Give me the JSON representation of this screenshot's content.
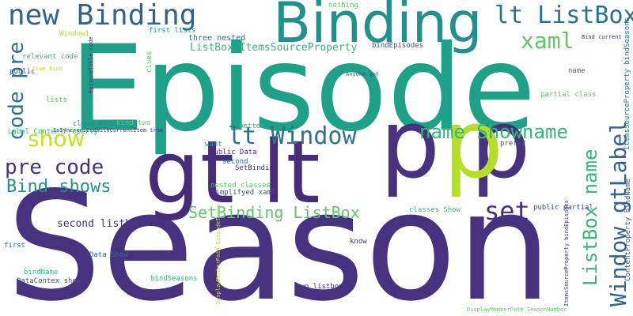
{
  "palette": {
    "dark_purple": "#472c7a",
    "purple": "#46327e",
    "indigo": "#3b528b",
    "blue": "#33638d",
    "steel_blue": "#2c728e",
    "teal": "#21918c",
    "green_teal": "#1fa187",
    "green": "#35b779",
    "light_green": "#5ec962",
    "yellow_green": "#b5de2b",
    "yellow": "#c8e020",
    "background": "#ffffff"
  },
  "words": [
    {
      "text": "Season",
      "color": "#46327e"
    },
    {
      "text": "Episode",
      "color": "#1fa187"
    },
    {
      "text": "Binding",
      "color": "#21918c"
    },
    {
      "text": "gt lt",
      "color": "#472c7a"
    },
    {
      "text": "p p",
      "color": "#46327e"
    },
    {
      "text": "p",
      "color": "#b5de2b"
    },
    {
      "text": "new Binding",
      "color": "#33638d"
    },
    {
      "text": "lt ListBox",
      "color": "#2c728e"
    },
    {
      "text": "xaml",
      "color": "#5ec962"
    },
    {
      "text": "code pre",
      "color": "#2c728e"
    },
    {
      "text": "lt Window",
      "color": "#2c728e"
    },
    {
      "text": "show",
      "color": "#c8e020"
    },
    {
      "text": "name Showname",
      "color": "#35b779"
    },
    {
      "text": "pre code",
      "color": "#46327e"
    },
    {
      "text": "Bind shows",
      "color": "#21918c"
    },
    {
      "text": "SetBinding ListBox",
      "color": "#5ec962"
    },
    {
      "text": "set",
      "color": "#46327e"
    },
    {
      "text": "Window gtLabel",
      "color": "#33638d"
    },
    {
      "text": "ListBox name",
      "color": "#35b779"
    },
    {
      "text": "ListBox ItemsSourceProperty",
      "color": "#35b779"
    },
    {
      "text": "second listbox",
      "color": "#46327e"
    },
    {
      "text": "nothing",
      "color": "#5ec962"
    },
    {
      "text": "Window1",
      "color": "#b5de2b"
    },
    {
      "text": "first lists",
      "color": "#21918c"
    },
    {
      "text": "three nested",
      "color": "#2c728e"
    },
    {
      "text": "Bind current",
      "color": "#46327e"
    },
    {
      "text": "relevant code",
      "color": "#35b779"
    },
    {
      "text": "bindEpisodes",
      "color": "#3b528b"
    },
    {
      "text": "clues",
      "color": "#5ec962"
    },
    {
      "text": "public",
      "color": "#3b528b"
    },
    {
      "text": "lists",
      "color": "#5ec962"
    },
    {
      "text": "Anyone got",
      "color": "#3b528b"
    },
    {
      "text": "name",
      "color": "#2c728e"
    },
    {
      "text": "partial class",
      "color": "#5ec962"
    },
    {
      "text": "class Window1",
      "color": "#21918c"
    },
    {
      "text": "IsSyncronizedWithCurrentItem true",
      "color": "#46327e"
    },
    {
      "text": "better",
      "color": "#35b779"
    },
    {
      "text": "Label ContentProperty",
      "color": "#35b779"
    },
    {
      "text": "bind two",
      "color": "#5ec962"
    },
    {
      "text": "want",
      "color": "#21918c"
    },
    {
      "text": "public Data",
      "color": "#46327e"
    },
    {
      "text": "prefer",
      "color": "#3b528b"
    },
    {
      "text": "second",
      "color": "#2c728e"
    },
    {
      "text": "SetBinding",
      "color": "#46327e"
    },
    {
      "text": "nested classes",
      "color": "#5ec962"
    },
    {
      "text": "simplifyed xaml",
      "color": "#3b528b"
    },
    {
      "text": "first",
      "color": "#2c728e"
    },
    {
      "text": "Data Show",
      "color": "#33638d"
    },
    {
      "text": "classes Show",
      "color": "#35b779"
    },
    {
      "text": "public partial",
      "color": "#3b528b"
    },
    {
      "text": "know",
      "color": "#46327e"
    },
    {
      "text": "bindName",
      "color": "#35b779"
    },
    {
      "text": "DataContex show",
      "color": "#3b528b"
    },
    {
      "text": "bindSeasons",
      "color": "#35b779"
    },
    {
      "text": "two listboxes",
      "color": "#46327e"
    },
    {
      "text": "true Bind",
      "color": "#c8e020"
    },
    {
      "text": "EpisodeTitle code",
      "color": "#472c7a"
    },
    {
      "text": "ItemsSourceProperty bindSeasons",
      "color": "#2c728e"
    },
    {
      "text": "ContentProperty bindName",
      "color": "#3b528b"
    },
    {
      "text": "ItemsSourceProperty bindEpisodes",
      "color": "#46327e"
    },
    {
      "text": "DisplayMemberPath EpisodeTitle",
      "color": "#c8e020"
    },
    {
      "text": "DisplayMemberPath SeasonNumber",
      "color": "#5ec962"
    }
  ]
}
